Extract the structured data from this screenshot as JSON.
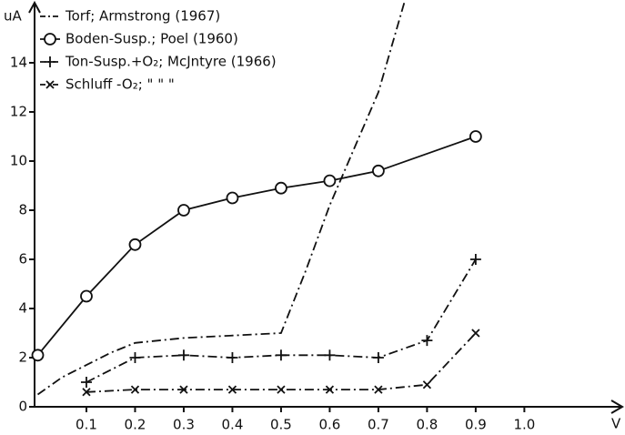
{
  "chart_data": {
    "type": "line",
    "x_label": "V",
    "y_label": "uA",
    "xlim": [
      0,
      1.19
    ],
    "ylim": [
      0,
      16.5
    ],
    "xticks": [
      {
        "value": 0.1,
        "label": "0.1"
      },
      {
        "value": 0.2,
        "label": "0.2"
      },
      {
        "value": 0.3,
        "label": "0.3"
      },
      {
        "value": 0.4,
        "label": "0.4"
      },
      {
        "value": 0.5,
        "label": "0.5"
      },
      {
        "value": 0.6,
        "label": "0.6"
      },
      {
        "value": 0.7,
        "label": "0.7"
      },
      {
        "value": 0.8,
        "label": "0.8"
      },
      {
        "value": 0.9,
        "label": "0.9"
      },
      {
        "value": 1.0,
        "label": "1.0"
      }
    ],
    "yticks": [
      0,
      2,
      4,
      6,
      8,
      10,
      12,
      14
    ],
    "grid": false,
    "series": [
      {
        "name": "Torf; Armstrong (1967)",
        "color": "#111",
        "dash": "dashdot",
        "marker": "none",
        "x": [
          0,
          0.05,
          0.1,
          0.15,
          0.2,
          0.3,
          0.4,
          0.5,
          0.55,
          0.6,
          0.65,
          0.7,
          0.754
        ],
        "values": [
          0.5,
          1.2,
          1.7,
          2.2,
          2.6,
          2.8,
          2.9,
          3.0,
          5.5,
          8.2,
          10.5,
          12.8,
          16.5
        ]
      },
      {
        "name": "Boden-Susp.; Poel (1960)",
        "color": "#111",
        "dash": "solid",
        "marker": "circle",
        "x": [
          0,
          0.1,
          0.2,
          0.3,
          0.4,
          0.5,
          0.6,
          0.7,
          0.9
        ],
        "values": [
          2.1,
          4.5,
          6.6,
          8.0,
          8.5,
          8.9,
          9.2,
          9.6,
          11.0
        ]
      },
      {
        "name": "Ton-Susp.+O₂; McJntyre (1966)",
        "color": "#111",
        "dash": "dashdot",
        "marker": "plus",
        "x": [
          0.1,
          0.2,
          0.3,
          0.4,
          0.5,
          0.6,
          0.7,
          0.8,
          0.9
        ],
        "values": [
          1.0,
          2.0,
          2.1,
          2.0,
          2.1,
          2.1,
          2.0,
          2.7,
          6.0
        ]
      },
      {
        "name": "Schluff -O₂;   \"     \"     \"",
        "color": "#111",
        "dash": "dashdot",
        "marker": "cross",
        "x": [
          0.1,
          0.2,
          0.3,
          0.4,
          0.5,
          0.6,
          0.7,
          0.8,
          0.9
        ],
        "values": [
          0.6,
          0.7,
          0.7,
          0.7,
          0.7,
          0.7,
          0.7,
          0.9,
          3.0
        ]
      }
    ]
  }
}
